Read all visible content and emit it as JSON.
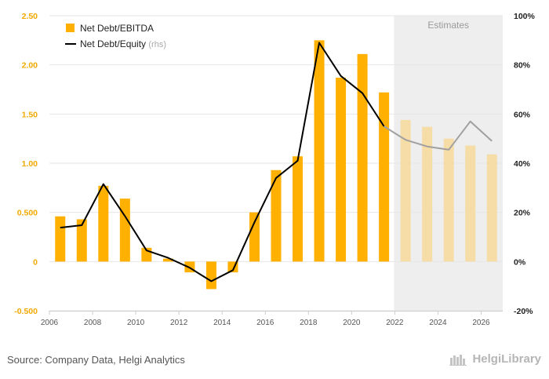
{
  "source_text": "Source: Company Data, Helgi Analytics",
  "brand_text": "HelgiLibrary",
  "estimates_label": "Estimates",
  "chart_data": {
    "type": "bar",
    "x": [
      2006,
      2007,
      2008,
      2009,
      2010,
      2011,
      2012,
      2013,
      2014,
      2015,
      2016,
      2017,
      2018,
      2019,
      2020,
      2021,
      2022,
      2023,
      2024,
      2025,
      2026
    ],
    "x_tick_labels": [
      "2006",
      "2008",
      "2010",
      "2012",
      "2014",
      "2016",
      "2018",
      "2020",
      "2022",
      "2024",
      "2026"
    ],
    "estimates_from": 2022,
    "left_axis": {
      "ylim": [
        -0.5,
        2.5
      ],
      "ticks": [
        2.5,
        2.0,
        1.5,
        1.0,
        0.5,
        0,
        -0.5
      ],
      "tick_labels": [
        "2.50",
        "2.00",
        "1.50",
        "1.00",
        "0.500",
        "0",
        "-0.500"
      ]
    },
    "right_axis": {
      "ylim": [
        -20,
        100
      ],
      "ticks": [
        100,
        80,
        60,
        40,
        20,
        0,
        -20
      ],
      "tick_labels": [
        "100%",
        "80%",
        "60%",
        "40%",
        "20%",
        "0%",
        "-20%"
      ]
    },
    "series": [
      {
        "name": "Net Debt/EBITDA",
        "type": "bar",
        "axis": "left",
        "color": "#ffb000",
        "estimate_color": "#f6dca6",
        "values": [
          0.46,
          0.43,
          0.77,
          0.64,
          0.14,
          0.03,
          -0.11,
          -0.28,
          -0.11,
          0.5,
          0.93,
          1.07,
          2.25,
          1.87,
          2.11,
          1.72,
          1.44,
          1.37,
          1.25,
          1.18,
          1.09
        ]
      },
      {
        "name": "Net Debt/Equity",
        "name_suffix": "(rhs)",
        "type": "line",
        "axis": "right",
        "color": "#000000",
        "estimate_color": "#a0a0a0",
        "values": [
          13.8,
          14.8,
          31.5,
          18.5,
          4.5,
          1.5,
          -2.5,
          -8.0,
          -3.5,
          16.0,
          34.0,
          41.0,
          89.0,
          75.5,
          68.5,
          55.0,
          49.5,
          46.8,
          45.5,
          57.0,
          49.0
        ]
      }
    ],
    "grid": "horizontal",
    "legend_position": "top-left"
  }
}
